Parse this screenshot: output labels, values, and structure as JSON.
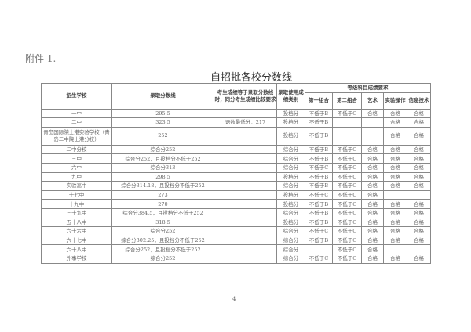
{
  "attachment_label": "附件 1.",
  "title": "自招批各校分数线",
  "headers": {
    "school": "招生学校",
    "score": "录取分数线",
    "tie_rule": "考生成绩等于录取分数线时，同分考生成绩比较要求",
    "category": "录取使用成绩类别",
    "grade_group": "等级科目成绩要求",
    "group1": "第一组合",
    "group2": "第二组合",
    "art": "艺术",
    "lab": "实验操作",
    "it": "信息技术"
  },
  "rows": [
    {
      "school": "一中",
      "score": "295.5",
      "tie": "",
      "cat": "投档分",
      "g1": "不低于B",
      "g2": "不低于C",
      "art": "合格",
      "lab": "合格",
      "it": "合格"
    },
    {
      "school": "二中",
      "score": "323.5",
      "tie": "语数最低分：217",
      "cat": "投档分",
      "g1": "不低于B",
      "g2": "",
      "art": "",
      "lab": "合格",
      "it": "合格"
    },
    {
      "school": "青岛国际院士港实验学校（青岛二中院士港分校）",
      "score": "252",
      "tie": "",
      "cat": "投档分",
      "g1": "不低于B",
      "g2": "",
      "art": "",
      "lab": "合格",
      "it": "合格"
    },
    {
      "school": "二中分校",
      "score": "综合分252",
      "tie": "",
      "cat": "综合分",
      "g1": "不低于B",
      "g2": "不低于C",
      "art": "合格",
      "lab": "合格",
      "it": "合格"
    },
    {
      "school": "三中",
      "score": "综合分252，且投档分不低于252",
      "tie": "",
      "cat": "综合分",
      "g1": "不低于B",
      "g2": "不低于C",
      "art": "合格",
      "lab": "合格",
      "it": "合格"
    },
    {
      "school": "六中",
      "score": "综合分313",
      "tie": "",
      "cat": "综合分",
      "g1": "不低于C",
      "g2": "不低于C",
      "art": "合格",
      "lab": "合格",
      "it": "合格"
    },
    {
      "school": "九中",
      "score": "298.5",
      "tie": "",
      "cat": "投档分",
      "g1": "不低于B",
      "g2": "不低于C",
      "art": "合格",
      "lab": "合格",
      "it": "合格"
    },
    {
      "school": "实验高中",
      "score": "综合分314.18，且投档分不低于252",
      "tie": "",
      "cat": "综合分",
      "g1": "不低于B",
      "g2": "不低于C",
      "art": "合格",
      "lab": "合格",
      "it": "合格"
    },
    {
      "school": "十七中",
      "score": "273",
      "tie": "",
      "cat": "投档分",
      "g1": "不低于C",
      "g2": "不低于C",
      "art": "合格",
      "lab": "",
      "it": ""
    },
    {
      "school": "十九中",
      "score": "270",
      "tie": "",
      "cat": "投档分",
      "g1": "不低于B",
      "g2": "不低于C",
      "art": "合格",
      "lab": "合格",
      "it": "合格"
    },
    {
      "school": "三十九中",
      "score": "综合分384.5，且投档分不低于252",
      "tie": "",
      "cat": "综合分",
      "g1": "不低于B",
      "g2": "不低于C",
      "art": "合格",
      "lab": "合格",
      "it": "合格"
    },
    {
      "school": "五十八中",
      "score": "318.5",
      "tie": "",
      "cat": "投档分",
      "g1": "不低于B",
      "g2": "不低于C",
      "art": "合格",
      "lab": "合格",
      "it": "合格"
    },
    {
      "school": "六十六中",
      "score": "综合分252",
      "tie": "",
      "cat": "综合分",
      "g1": "不低于C",
      "g2": "不低于C",
      "art": "合格",
      "lab": "合格",
      "it": "合格"
    },
    {
      "school": "六十七中",
      "score": "综合分302.25，且投档分不低于252",
      "tie": "",
      "cat": "综合分",
      "g1": "不低于B",
      "g2": "不低于C",
      "art": "合格",
      "lab": "合格",
      "it": "合格"
    },
    {
      "school": "六十八中",
      "score": "综合分252，且投档分不低于252",
      "tie": "",
      "cat": "综合分",
      "g1": "",
      "g2": "不低于C",
      "art": "合格",
      "lab": "",
      "it": ""
    },
    {
      "school": "外事学校",
      "score": "综合分252",
      "tie": "",
      "cat": "综合分",
      "g1": "不低于C",
      "g2": "不低于C",
      "art": "合格",
      "lab": "合格",
      "it": "合格"
    }
  ],
  "page_number": "4"
}
